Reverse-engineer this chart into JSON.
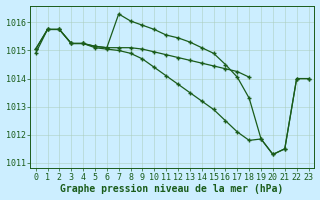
{
  "background_color": "#cceeff",
  "grid_color": "#aaddcc",
  "line_color": "#1a5c1a",
  "xlabel": "Graphe pression niveau de la mer (hPa)",
  "xlabel_fontsize": 7,
  "tick_fontsize": 6,
  "ylim": [
    1010.8,
    1016.6
  ],
  "xlim": [
    -0.5,
    23.5
  ],
  "yticks": [
    1011,
    1012,
    1013,
    1014,
    1015,
    1016
  ],
  "xticks": [
    0,
    1,
    2,
    3,
    4,
    5,
    6,
    7,
    8,
    9,
    10,
    11,
    12,
    13,
    14,
    15,
    16,
    17,
    18,
    19,
    20,
    21,
    22,
    23
  ],
  "series": [
    {
      "x": [
        0,
        1,
        2,
        3,
        4,
        5,
        6,
        7,
        8,
        9,
        10,
        11,
        12,
        13,
        14,
        15,
        16,
        17,
        18
      ],
      "y": [
        1015.05,
        1015.75,
        1015.75,
        1015.25,
        1015.25,
        1015.15,
        1015.1,
        1015.1,
        1015.1,
        1015.05,
        1014.95,
        1014.85,
        1014.75,
        1014.65,
        1014.55,
        1014.45,
        1014.35,
        1014.25,
        1014.05
      ]
    },
    {
      "x": [
        0,
        1,
        2,
        3,
        4,
        5,
        6,
        7,
        8,
        9,
        10,
        11,
        12,
        13,
        14,
        15,
        16,
        17,
        18,
        19,
        20,
        21,
        22,
        23
      ],
      "y": [
        1015.05,
        1015.75,
        1015.75,
        1015.25,
        1015.25,
        1015.15,
        1015.1,
        1016.3,
        1016.05,
        1015.9,
        1015.75,
        1015.55,
        1015.45,
        1015.3,
        1015.1,
        1014.9,
        1014.5,
        1014.05,
        1013.3,
        1011.85,
        1011.3,
        1011.5,
        1014.0,
        1014.0
      ]
    },
    {
      "x": [
        0,
        1,
        2,
        3,
        4,
        5,
        6,
        7,
        8,
        9,
        10,
        11,
        12,
        13,
        14,
        15,
        16,
        17,
        18,
        19,
        20,
        21,
        22,
        23
      ],
      "y": [
        1014.9,
        1015.75,
        1015.75,
        1015.25,
        1015.25,
        1015.1,
        1015.05,
        1015.0,
        1014.9,
        1014.7,
        1014.4,
        1014.1,
        1013.8,
        1013.5,
        1013.2,
        1012.9,
        1012.5,
        1012.1,
        1011.8,
        1011.85,
        1011.3,
        1011.5,
        1014.0,
        1014.0
      ]
    }
  ]
}
